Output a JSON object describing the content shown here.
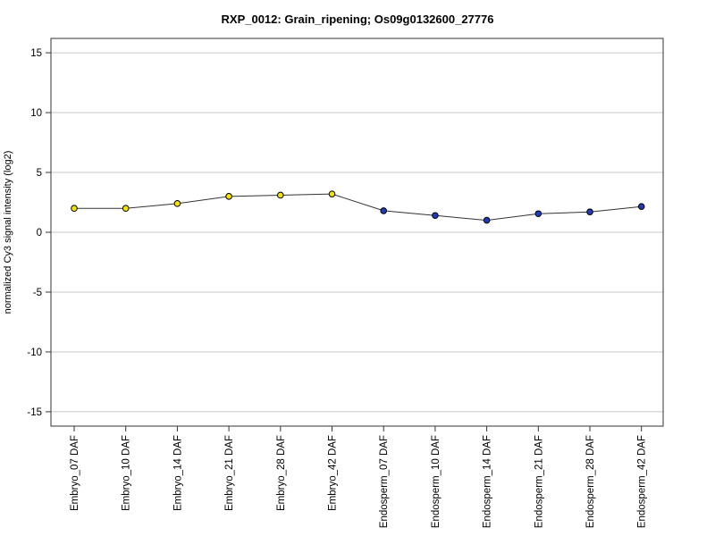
{
  "chart_data": {
    "type": "line",
    "title": "RXP_0012: Grain_ripening; Os09g0132600_27776",
    "xlabel": "",
    "ylabel": "normalized Cy3 signal intensity (log2)",
    "ylim": [
      -16.2,
      16.2
    ],
    "yticks": [
      15,
      10,
      5,
      0,
      -5,
      -10,
      -15
    ],
    "ytick_labels": [
      "15",
      "10",
      "5",
      "0",
      "-5",
      "-10",
      "-15"
    ],
    "grid": true,
    "categories": [
      "Embryo_07 DAF",
      "Embryo_10 DAF",
      "Embryo_14 DAF",
      "Embryo_21 DAF",
      "Embryo_28 DAF",
      "Embryo_42 DAF",
      "Endosperm_07 DAF",
      "Endosperm_10 DAF",
      "Endosperm_14 DAF",
      "Endosperm_21 DAF",
      "Endosperm_28 DAF",
      "Endosperm_42 DAF"
    ],
    "series": [
      {
        "values": [
          2.0,
          2.0,
          2.4,
          3.0,
          3.1,
          3.2,
          1.8,
          1.4,
          1.0,
          1.55,
          1.7,
          2.15
        ],
        "point_colors": [
          "#f2e200",
          "#f2e200",
          "#f2e200",
          "#f2e200",
          "#f2e200",
          "#f2e200",
          "#1f3bb5",
          "#1f3bb5",
          "#1f3bb5",
          "#1f3bb5",
          "#1f3bb5",
          "#1f3bb5"
        ],
        "line_color": "#333333"
      }
    ]
  }
}
